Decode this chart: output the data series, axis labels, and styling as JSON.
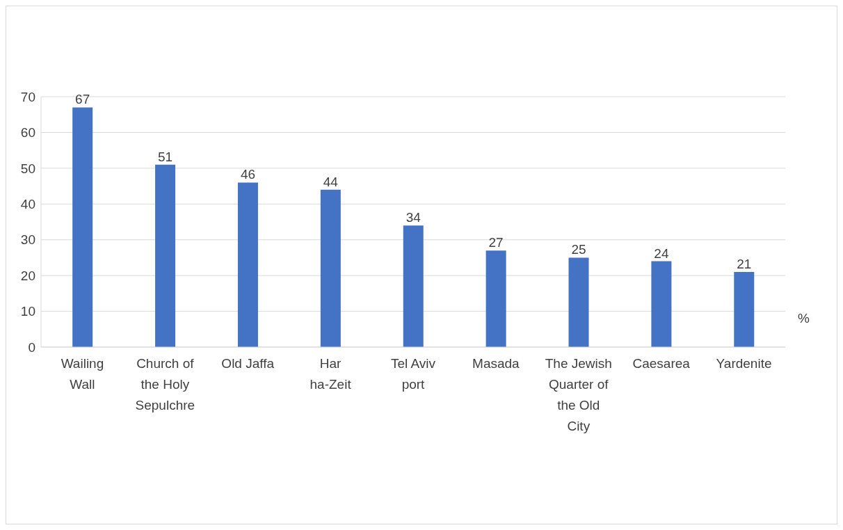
{
  "chart_data": {
    "type": "bar",
    "categories": [
      "Wailing Wall",
      "Church of the Holy Sepulchre",
      "Old Jaffa",
      "Har ha-Zeit",
      "Tel Aviv port",
      "Masada",
      "The Jewish Quarter of the Old City",
      "Caesarea",
      "Yardenite"
    ],
    "values": [
      67,
      51,
      46,
      44,
      34,
      27,
      25,
      24,
      21
    ],
    "color": "#4472c4",
    "ylim": [
      0,
      70
    ],
    "yticks": [
      0,
      10,
      20,
      30,
      40,
      50,
      60,
      70
    ],
    "grid": "y",
    "data_labels": true,
    "annotations": [
      "%"
    ]
  }
}
